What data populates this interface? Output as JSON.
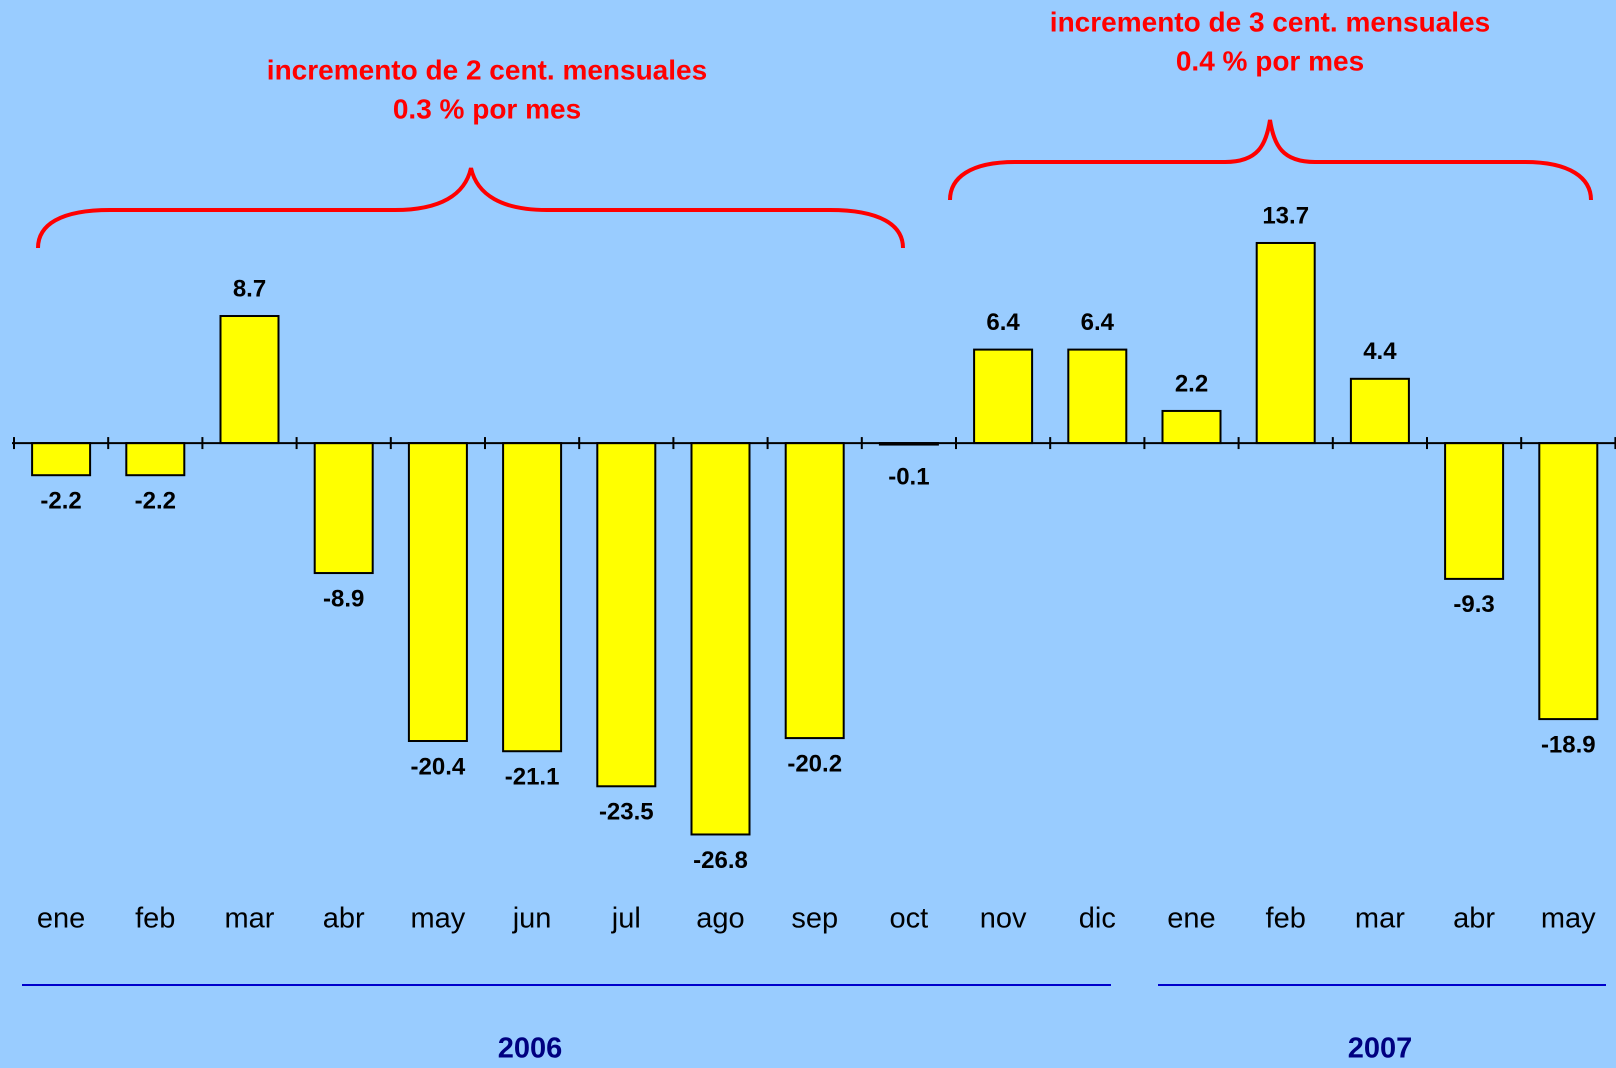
{
  "chart_data": {
    "type": "bar",
    "categories": [
      "ene",
      "feb",
      "mar",
      "abr",
      "may",
      "jun",
      "jul",
      "ago",
      "sep",
      "oct",
      "nov",
      "dic",
      "ene",
      "feb",
      "mar",
      "abr",
      "may"
    ],
    "values": [
      -2.2,
      -2.2,
      8.7,
      -8.9,
      -20.4,
      -21.1,
      -23.5,
      -26.8,
      -20.2,
      -0.1,
      6.4,
      6.4,
      2.2,
      13.7,
      4.4,
      -9.3,
      -18.9
    ],
    "color": "#ffff00",
    "ylim": [
      -28,
      15
    ],
    "annotations": [
      {
        "lines": [
          "incremento de 2 cent. mensuales",
          "0.3 % por mes"
        ]
      },
      {
        "lines": [
          "incremento de 3 cent. mensuales",
          "0.4 % por mes"
        ]
      }
    ],
    "groups": [
      "2006",
      "2007"
    ]
  }
}
